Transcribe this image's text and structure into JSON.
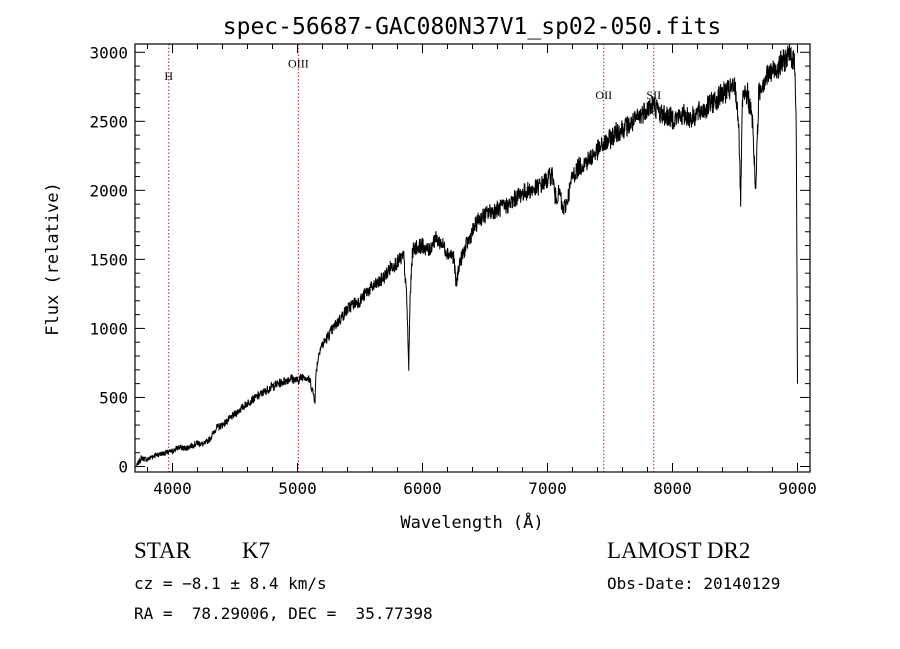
{
  "chart_data": {
    "type": "line",
    "title": "spec-56687-GAC080N37V1_sp02-050.fits",
    "xlabel": "Wavelength (Å)",
    "ylabel": "Flux (relative)",
    "xlim": [
      3700,
      9100
    ],
    "ylim": [
      -40,
      3060
    ],
    "x_ticks": [
      4000,
      5000,
      6000,
      7000,
      8000,
      9000
    ],
    "y_ticks": [
      0,
      500,
      1000,
      1500,
      2000,
      2500,
      3000
    ],
    "grid": false,
    "line_color": "#000000",
    "marker_color": "#b22222",
    "line_markers": [
      {
        "label": "H",
        "x": 3970,
        "label_y": 2800
      },
      {
        "label": "OIII",
        "x": 5007,
        "label_y": 2890
      },
      {
        "label": "OII",
        "x": 7450,
        "label_y": 2660
      },
      {
        "label": "SII",
        "x": 7850,
        "label_y": 2660
      }
    ],
    "series": [
      {
        "x": [
          3710,
          3750,
          3800,
          3850,
          3900,
          3950,
          4000,
          4050,
          4100,
          4150,
          4200,
          4250,
          4300,
          4350,
          4400,
          4450,
          4500,
          4550,
          4600,
          4650,
          4700,
          4750,
          4800,
          4850,
          4900,
          4950,
          5000,
          5050,
          5100,
          5140,
          5150,
          5180,
          5200,
          5250,
          5300,
          5350,
          5400,
          5450,
          5500,
          5550,
          5600,
          5650,
          5700,
          5750,
          5800,
          5850,
          5875,
          5890,
          5900,
          5920,
          5950,
          6000,
          6050,
          6100,
          6150,
          6200,
          6250,
          6270,
          6290,
          6300,
          6350,
          6400,
          6450,
          6500,
          6550,
          6600,
          6650,
          6700,
          6750,
          6800,
          6850,
          6900,
          6950,
          7000,
          7040,
          7060,
          7100,
          7120,
          7150,
          7200,
          7250,
          7300,
          7350,
          7400,
          7450,
          7500,
          7550,
          7600,
          7650,
          7700,
          7750,
          7800,
          7850,
          7900,
          7950,
          8000,
          8050,
          8100,
          8150,
          8200,
          8250,
          8300,
          8350,
          8400,
          8450,
          8500,
          8530,
          8545,
          8560,
          8600,
          8640,
          8665,
          8690,
          8720,
          8750,
          8800,
          8850,
          8900,
          8950,
          8980,
          8990,
          9000
        ],
        "y": [
          0,
          60,
          50,
          80,
          90,
          100,
          110,
          140,
          130,
          150,
          170,
          160,
          200,
          280,
          300,
          340,
          380,
          420,
          460,
          490,
          520,
          550,
          580,
          600,
          620,
          640,
          620,
          660,
          620,
          480,
          700,
          860,
          880,
          950,
          1020,
          1080,
          1140,
          1180,
          1200,
          1260,
          1300,
          1330,
          1380,
          1450,
          1480,
          1520,
          1200,
          700,
          1200,
          1560,
          1590,
          1600,
          1560,
          1650,
          1620,
          1550,
          1520,
          1300,
          1450,
          1480,
          1600,
          1700,
          1790,
          1820,
          1850,
          1860,
          1880,
          1900,
          1950,
          1980,
          2000,
          2010,
          2040,
          2080,
          2120,
          1950,
          1980,
          1850,
          1900,
          2100,
          2170,
          2200,
          2240,
          2290,
          2330,
          2370,
          2420,
          2450,
          2470,
          2500,
          2550,
          2600,
          2620,
          2560,
          2540,
          2520,
          2530,
          2550,
          2520,
          2560,
          2580,
          2620,
          2660,
          2700,
          2720,
          2750,
          2500,
          1900,
          2650,
          2700,
          2500,
          2000,
          2700,
          2780,
          2820,
          2860,
          2900,
          2950,
          2980,
          2900,
          2500,
          600
        ]
      }
    ]
  },
  "info": {
    "object_type": "STAR",
    "subclass": "K7",
    "survey": "LAMOST DR2",
    "velocity": "cz = −8.1 ± 8.4 km/s",
    "obs_date": "Obs-Date: 20140129",
    "coords": "RA =  78.29006, DEC =  35.77398"
  }
}
